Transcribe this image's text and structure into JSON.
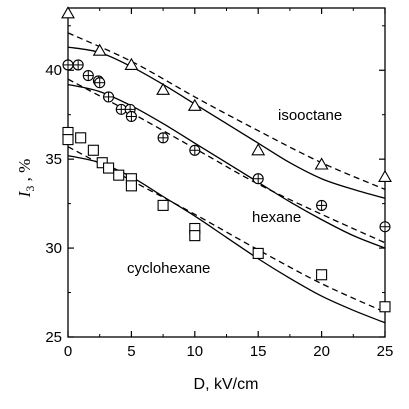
{
  "chart_data": {
    "type": "scatter",
    "title": "",
    "xlabel": "D,  kV/cm",
    "ylabel": {
      "main": "I",
      "sub": "3",
      "unit": " , %"
    },
    "xlim": [
      0,
      25
    ],
    "ylim": [
      25,
      43.5
    ],
    "xticks": [
      0,
      5,
      10,
      15,
      20,
      25
    ],
    "yticks": [
      25,
      30,
      35,
      40
    ],
    "grid": false,
    "legend": "none",
    "series": [
      {
        "name": "isooctane",
        "marker": "triangle",
        "points": [
          [
            0,
            43.2
          ],
          [
            2.5,
            41.1
          ],
          [
            5,
            40.3
          ],
          [
            7.5,
            38.9
          ],
          [
            10,
            38.0
          ],
          [
            15,
            35.5
          ],
          [
            20,
            34.7
          ],
          [
            25,
            34.0
          ]
        ],
        "fit_solid": [
          [
            0,
            41.3
          ],
          [
            2.5,
            41.0
          ],
          [
            5,
            40.2
          ],
          [
            7.5,
            39.2
          ],
          [
            10,
            38.1
          ],
          [
            12.5,
            37.0
          ],
          [
            15,
            35.9
          ],
          [
            17.5,
            34.8
          ],
          [
            20,
            33.9
          ],
          [
            22.5,
            33.3
          ],
          [
            25,
            32.8
          ]
        ],
        "fit_dashed": [
          [
            0,
            42.1
          ],
          [
            5,
            40.5
          ],
          [
            10,
            38.5
          ],
          [
            15,
            36.6
          ],
          [
            20,
            34.8
          ],
          [
            25,
            33.3
          ]
        ]
      },
      {
        "name": "hexane",
        "marker": "circle-plus",
        "points": [
          [
            0,
            40.3
          ],
          [
            0.8,
            40.3
          ],
          [
            1.6,
            39.7
          ],
          [
            2.4,
            39.4
          ],
          [
            2.5,
            39.3
          ],
          [
            3.2,
            38.5
          ],
          [
            4.2,
            37.8
          ],
          [
            4.9,
            37.8
          ],
          [
            5.0,
            37.4
          ],
          [
            7.5,
            36.2
          ],
          [
            10,
            35.5
          ],
          [
            15,
            33.9
          ],
          [
            20,
            32.4
          ],
          [
            25,
            31.2
          ]
        ],
        "fit_solid": [
          [
            0,
            39.2
          ],
          [
            2.5,
            38.8
          ],
          [
            5,
            38.0
          ],
          [
            7.5,
            37.0
          ],
          [
            10,
            35.9
          ],
          [
            12.5,
            34.8
          ],
          [
            15,
            33.7
          ],
          [
            17.5,
            32.6
          ],
          [
            20,
            31.6
          ],
          [
            22.5,
            30.7
          ],
          [
            25,
            30.0
          ]
        ],
        "fit_dashed": [
          [
            0,
            39.5
          ],
          [
            5,
            37.6
          ],
          [
            10,
            35.6
          ],
          [
            15,
            33.6
          ],
          [
            20,
            31.9
          ],
          [
            25,
            30.3
          ]
        ]
      },
      {
        "name": "cyclohexane",
        "marker": "square",
        "points": [
          [
            0,
            36.5
          ],
          [
            0,
            36.1
          ],
          [
            1,
            36.2
          ],
          [
            2,
            35.5
          ],
          [
            2.7,
            34.8
          ],
          [
            3.2,
            34.5
          ],
          [
            4,
            34.1
          ],
          [
            5,
            33.9
          ],
          [
            5,
            33.5
          ],
          [
            7.5,
            32.4
          ],
          [
            10,
            31.1
          ],
          [
            10,
            30.7
          ],
          [
            15,
            29.7
          ],
          [
            20,
            28.5
          ],
          [
            25,
            26.7
          ]
        ],
        "fit_solid": [
          [
            0,
            35.2
          ],
          [
            2.5,
            34.8
          ],
          [
            5,
            34.0
          ],
          [
            7.5,
            32.9
          ],
          [
            10,
            31.8
          ],
          [
            12.5,
            30.6
          ],
          [
            15,
            29.4
          ],
          [
            17.5,
            28.3
          ],
          [
            20,
            27.3
          ],
          [
            22.5,
            26.5
          ],
          [
            25,
            25.8
          ]
        ],
        "fit_dashed": [
          [
            0,
            35.7
          ],
          [
            5,
            33.8
          ],
          [
            10,
            31.9
          ],
          [
            15,
            29.9
          ],
          [
            20,
            28.0
          ],
          [
            25,
            26.4
          ]
        ]
      }
    ]
  }
}
